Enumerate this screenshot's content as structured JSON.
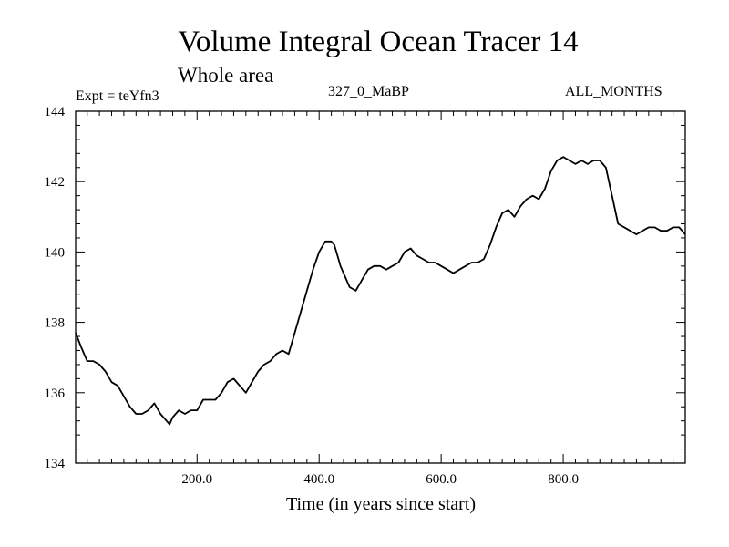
{
  "chart_data": {
    "type": "line",
    "title": "Volume Integral Ocean Tracer 14",
    "subtitle": "Whole area",
    "expt_label": "Expt = teYfn3",
    "period_label": "327_0_MaBP",
    "months_label": "ALL_MONTHS",
    "xlabel": "Time (in years since start)",
    "ylabel": "",
    "xlim": [
      1,
      1000
    ],
    "ylim": [
      134,
      144
    ],
    "x_ticks": [
      200,
      400,
      600,
      800
    ],
    "x_tick_labels": [
      "200.0",
      "400.0",
      "600.0",
      "800.0"
    ],
    "y_ticks": [
      134,
      136,
      138,
      140,
      142,
      144
    ],
    "y_tick_labels": [
      "134",
      "136",
      "138",
      "140",
      "142",
      "144"
    ],
    "grid": false,
    "series": [
      {
        "name": "Volume Integral Ocean Tracer 14",
        "color": "#000000",
        "x": [
          1,
          10,
          20,
          30,
          40,
          50,
          60,
          70,
          80,
          90,
          100,
          110,
          120,
          130,
          140,
          150,
          155,
          160,
          170,
          180,
          190,
          200,
          210,
          220,
          230,
          240,
          250,
          260,
          270,
          280,
          290,
          300,
          310,
          320,
          330,
          340,
          350,
          360,
          370,
          380,
          390,
          400,
          410,
          420,
          425,
          430,
          435,
          440,
          450,
          460,
          470,
          480,
          490,
          500,
          510,
          520,
          530,
          540,
          550,
          560,
          570,
          580,
          590,
          600,
          610,
          620,
          630,
          640,
          650,
          660,
          670,
          680,
          690,
          700,
          710,
          720,
          730,
          740,
          750,
          760,
          770,
          780,
          790,
          800,
          810,
          820,
          830,
          840,
          850,
          860,
          870,
          880,
          890,
          900,
          910,
          920,
          930,
          940,
          950,
          960,
          970,
          980,
          990,
          1000
        ],
        "values": [
          137.7,
          137.3,
          136.9,
          136.9,
          136.8,
          136.6,
          136.3,
          136.2,
          135.9,
          135.6,
          135.4,
          135.4,
          135.5,
          135.7,
          135.4,
          135.2,
          135.1,
          135.3,
          135.5,
          135.4,
          135.5,
          135.5,
          135.8,
          135.8,
          135.8,
          136.0,
          136.3,
          136.4,
          136.2,
          136.0,
          136.3,
          136.6,
          136.8,
          136.9,
          137.1,
          137.2,
          137.1,
          137.7,
          138.3,
          138.9,
          139.5,
          140.0,
          140.3,
          140.3,
          140.2,
          139.9,
          139.6,
          139.4,
          139.0,
          138.9,
          139.2,
          139.5,
          139.6,
          139.6,
          139.5,
          139.6,
          139.7,
          140.0,
          140.1,
          139.9,
          139.8,
          139.7,
          139.7,
          139.6,
          139.5,
          139.4,
          139.5,
          139.6,
          139.7,
          139.7,
          139.8,
          140.2,
          140.7,
          141.1,
          141.2,
          141.0,
          141.3,
          141.5,
          141.6,
          141.5,
          141.8,
          142.3,
          142.6,
          142.7,
          142.6,
          142.5,
          142.6,
          142.5,
          142.6,
          142.6,
          142.4,
          141.6,
          140.8,
          140.7,
          140.6,
          140.5,
          140.6,
          140.7,
          140.7,
          140.6,
          140.6,
          140.7,
          140.7,
          140.5
        ]
      }
    ]
  }
}
